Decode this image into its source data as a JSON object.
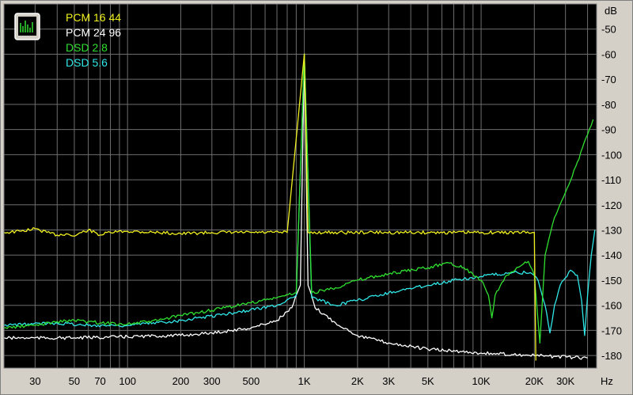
{
  "chart_data": {
    "type": "line",
    "ylabel": "dB",
    "xlabel": "Hz",
    "x_scale": "log",
    "xlim": [
      20,
      45000
    ],
    "ylim": [
      -185,
      -40
    ],
    "grid": true,
    "legend_position": "top-left",
    "y_ticks": [
      -50,
      -60,
      -70,
      -80,
      -90,
      -100,
      -110,
      -120,
      -130,
      -140,
      -150,
      -160,
      -170,
      -180
    ],
    "x_ticks": [
      {
        "v": 30,
        "label": "30"
      },
      {
        "v": 50,
        "label": "50"
      },
      {
        "v": 70,
        "label": "70"
      },
      {
        "v": 100,
        "label": "100"
      },
      {
        "v": 200,
        "label": "200"
      },
      {
        "v": 300,
        "label": "300"
      },
      {
        "v": 500,
        "label": "500"
      },
      {
        "v": 1000,
        "label": "1K"
      },
      {
        "v": 2000,
        "label": "2K"
      },
      {
        "v": 3000,
        "label": "3K"
      },
      {
        "v": 5000,
        "label": "5K"
      },
      {
        "v": 10000,
        "label": "10K"
      },
      {
        "v": 20000,
        "label": "20K"
      },
      {
        "v": 30000,
        "label": "30K"
      }
    ],
    "series": [
      {
        "name": "PCM 16 44",
        "color": "#f0f020",
        "values": [
          [
            20,
            -131
          ],
          [
            25,
            -130.5
          ],
          [
            30,
            -129.5
          ],
          [
            35,
            -131
          ],
          [
            40,
            -132
          ],
          [
            45,
            -131.5
          ],
          [
            50,
            -132.5
          ],
          [
            55,
            -131
          ],
          [
            60,
            -130
          ],
          [
            70,
            -132
          ],
          [
            80,
            -131
          ],
          [
            100,
            -130.5
          ],
          [
            150,
            -131
          ],
          [
            200,
            -131.5
          ],
          [
            300,
            -131
          ],
          [
            500,
            -131
          ],
          [
            800,
            -131
          ],
          [
            1000,
            -60
          ],
          [
            1050,
            -131
          ],
          [
            2000,
            -131
          ],
          [
            5000,
            -131
          ],
          [
            10000,
            -131
          ],
          [
            19500,
            -131
          ],
          [
            20000,
            -131
          ],
          [
            20400,
            -182
          ]
        ]
      },
      {
        "name": "PCM 24 96",
        "color": "#ffffff",
        "values": [
          [
            20,
            -173
          ],
          [
            50,
            -173
          ],
          [
            100,
            -172.5
          ],
          [
            200,
            -172
          ],
          [
            300,
            -171
          ],
          [
            500,
            -169
          ],
          [
            700,
            -166
          ],
          [
            850,
            -161
          ],
          [
            950,
            -152
          ],
          [
            1000,
            -60
          ],
          [
            1050,
            -152
          ],
          [
            1150,
            -161
          ],
          [
            1500,
            -167
          ],
          [
            2000,
            -172
          ],
          [
            3000,
            -175
          ],
          [
            5000,
            -177.5
          ],
          [
            10000,
            -179
          ],
          [
            20000,
            -180
          ],
          [
            40000,
            -181
          ]
        ]
      },
      {
        "name": "DSD 2.8",
        "color": "#30e030",
        "values": [
          [
            20,
            -169
          ],
          [
            30,
            -168
          ],
          [
            40,
            -166.5
          ],
          [
            50,
            -166
          ],
          [
            60,
            -166.5
          ],
          [
            70,
            -167
          ],
          [
            100,
            -167.5
          ],
          [
            150,
            -166
          ],
          [
            200,
            -164
          ],
          [
            300,
            -162
          ],
          [
            500,
            -159
          ],
          [
            700,
            -157
          ],
          [
            900,
            -155
          ],
          [
            1000,
            -60
          ],
          [
            1100,
            -155
          ],
          [
            1500,
            -153
          ],
          [
            2000,
            -150
          ],
          [
            3000,
            -147.5
          ],
          [
            5000,
            -145
          ],
          [
            6500,
            -143
          ],
          [
            8000,
            -145
          ],
          [
            10000,
            -150
          ],
          [
            11000,
            -156
          ],
          [
            11500,
            -165
          ],
          [
            12000,
            -156
          ],
          [
            14000,
            -148
          ],
          [
            17000,
            -144
          ],
          [
            18500,
            -142.5
          ],
          [
            20000,
            -148
          ],
          [
            21500,
            -175
          ],
          [
            23000,
            -140
          ],
          [
            26000,
            -125
          ],
          [
            30000,
            -115
          ],
          [
            35000,
            -103
          ],
          [
            40000,
            -92
          ],
          [
            43000,
            -86
          ]
        ]
      },
      {
        "name": "DSD 5.6",
        "color": "#30e8e8",
        "values": [
          [
            20,
            -168
          ],
          [
            40,
            -167
          ],
          [
            60,
            -168
          ],
          [
            100,
            -168
          ],
          [
            200,
            -166
          ],
          [
            400,
            -163
          ],
          [
            700,
            -160
          ],
          [
            900,
            -156
          ],
          [
            1000,
            -60
          ],
          [
            1100,
            -157
          ],
          [
            1500,
            -160
          ],
          [
            2000,
            -158
          ],
          [
            3000,
            -155
          ],
          [
            5000,
            -152
          ],
          [
            7000,
            -150
          ],
          [
            10000,
            -148.5
          ],
          [
            15000,
            -147
          ],
          [
            19000,
            -147
          ],
          [
            21000,
            -150
          ],
          [
            23000,
            -160
          ],
          [
            24500,
            -171
          ],
          [
            26000,
            -160
          ],
          [
            28000,
            -152
          ],
          [
            32000,
            -146
          ],
          [
            35000,
            -148
          ],
          [
            37000,
            -158
          ],
          [
            38500,
            -172
          ],
          [
            40000,
            -156
          ],
          [
            42000,
            -140
          ],
          [
            44000,
            -130
          ]
        ]
      }
    ]
  }
}
